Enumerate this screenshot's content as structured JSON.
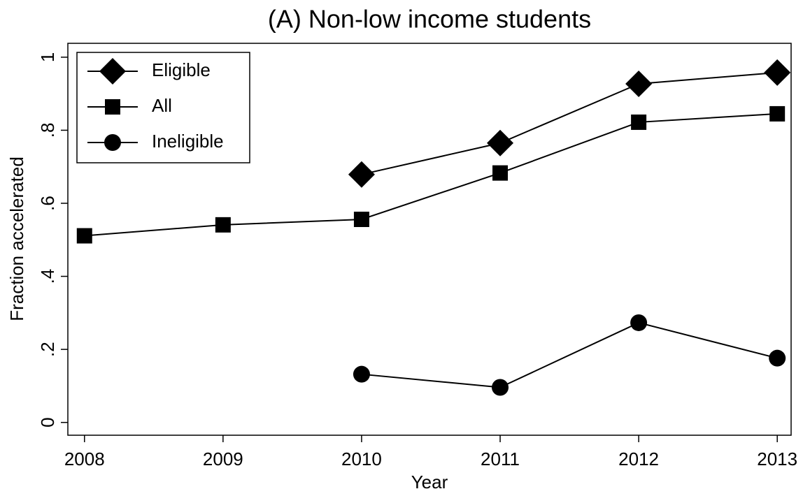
{
  "chart_data": {
    "type": "line",
    "title": "(A) Non-low income students",
    "x_label": "Year",
    "y_label": "Fraction accelerated",
    "x": [
      2008,
      2009,
      2010,
      2011,
      2012,
      2013
    ],
    "series": [
      {
        "name": "Eligible",
        "color": "#000000",
        "marker": "diamond",
        "values": [
          null,
          null,
          0.679,
          0.765,
          0.927,
          0.958
        ]
      },
      {
        "name": "All",
        "color": "#000000",
        "marker": "square",
        "values": [
          0.511,
          0.541,
          0.556,
          0.683,
          0.822,
          0.845
        ]
      },
      {
        "name": "Ineligible",
        "color": "#000000",
        "marker": "circle",
        "values": [
          null,
          null,
          0.132,
          0.096,
          0.273,
          0.176
        ]
      }
    ],
    "xlim": [
      2007.88,
      2013.1
    ],
    "xticks": [
      2008,
      2009,
      2010,
      2011,
      2012,
      2013
    ],
    "ylim": [
      -0.035,
      1.038
    ],
    "yticks": [
      0,
      {
        "value": 0.2,
        "label": ".2"
      },
      {
        "value": 0.4,
        "label": ".4"
      },
      {
        "value": 0.6,
        "label": ".6"
      },
      {
        "value": 0.8,
        "label": ".8"
      },
      1
    ],
    "grid": false,
    "legend": "upper-left"
  }
}
